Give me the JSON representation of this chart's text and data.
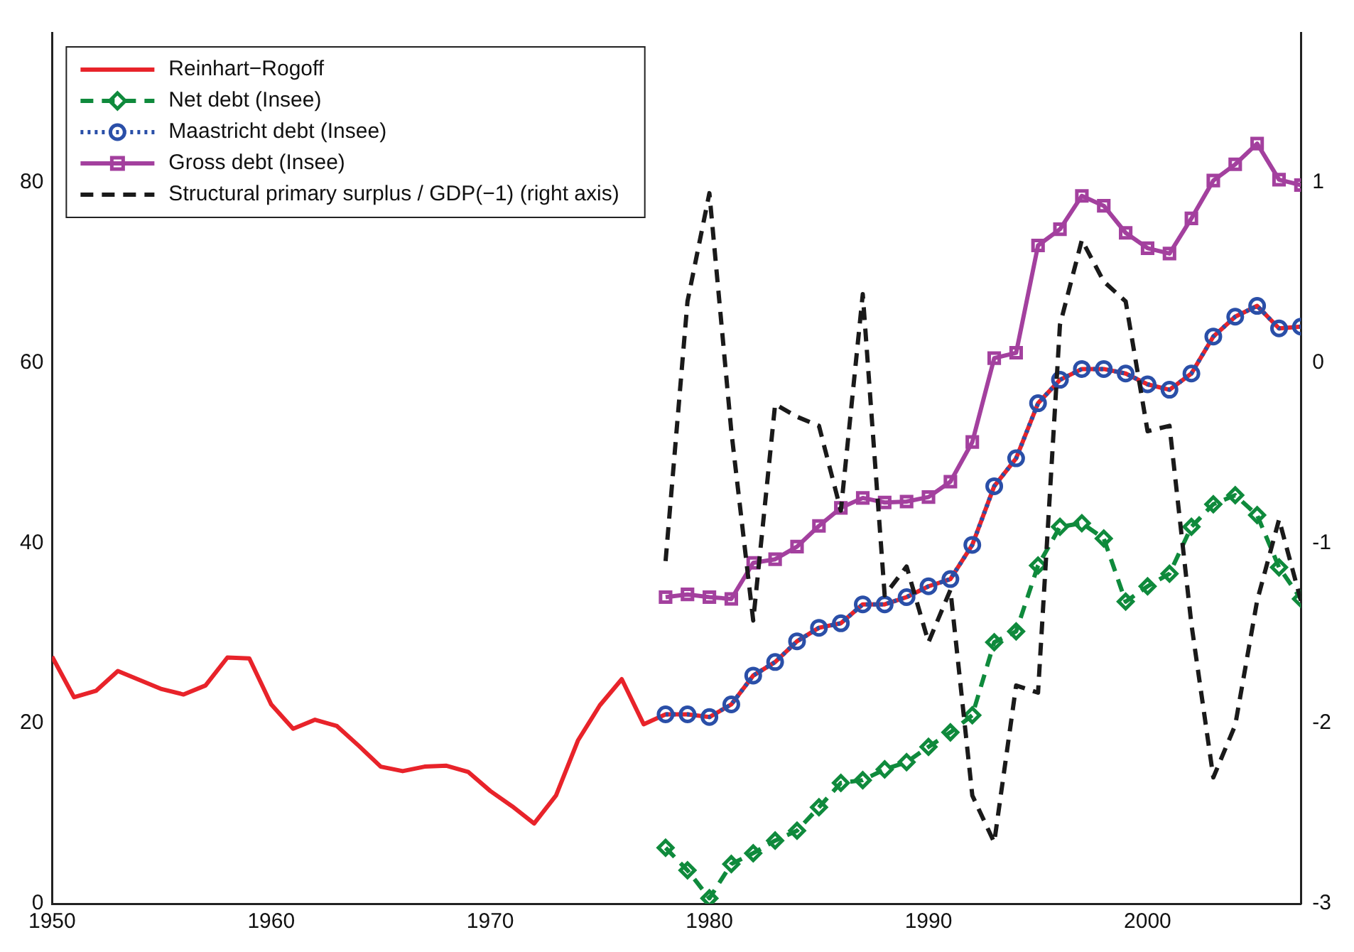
{
  "chart_data": {
    "type": "line",
    "x": [
      1978,
      1979,
      1980,
      1981,
      1982,
      1983,
      1984,
      1985,
      1986,
      1987,
      1988,
      1989,
      1990,
      1991,
      1992,
      1993,
      1994,
      1995,
      1996,
      1997,
      1998,
      1999,
      2000,
      2001,
      2002,
      2003,
      2004,
      2005,
      2006,
      2007
    ],
    "series": [
      {
        "name": "Reinhart−Rogoff",
        "color": "#e8232a",
        "marker": "none",
        "line_style": "solid",
        "x": [
          1950,
          1951,
          1952,
          1953,
          1954,
          1955,
          1956,
          1957,
          1958,
          1959,
          1960,
          1961,
          1962,
          1963,
          1964,
          1965,
          1966,
          1967,
          1968,
          1969,
          1970,
          1971,
          1972,
          1973,
          1974,
          1975,
          1976,
          1977,
          1978,
          1979,
          1980,
          1981,
          1982,
          1983,
          1984,
          1985,
          1986,
          1987,
          1988,
          1989,
          1990,
          1991,
          1992,
          1993,
          1994,
          1995,
          1996,
          1997,
          1998,
          1999,
          2000,
          2001,
          2002,
          2003,
          2004,
          2005,
          2006,
          2007
        ],
        "values": [
          27.4,
          22.9,
          23.6,
          25.8,
          24.8,
          23.8,
          23.2,
          24.2,
          27.3,
          27.2,
          22.1,
          19.4,
          20.4,
          19.7,
          17.5,
          15.2,
          14.7,
          15.2,
          15.3,
          14.6,
          12.5,
          10.8,
          8.9,
          12.0,
          18.1,
          22.0,
          24.9,
          19.9,
          21.0,
          21.0,
          20.7,
          22.1,
          25.3,
          26.8,
          29.1,
          30.6,
          31.1,
          33.2,
          33.2,
          34.0,
          35.2,
          36.0,
          39.8,
          46.3,
          49.4,
          55.5,
          58.1,
          59.3,
          59.3,
          58.8,
          57.6,
          57.0,
          58.8,
          62.9,
          65.1,
          66.3,
          63.8,
          64.0
        ]
      },
      {
        "name": "Net debt (Insee)",
        "color": "#0f8a3c",
        "marker": "diamond",
        "line_style": "dashed",
        "values": [
          6.2,
          3.7,
          0.6,
          4.4,
          5.6,
          7.0,
          8.1,
          10.7,
          13.4,
          13.7,
          14.9,
          15.7,
          17.4,
          19.0,
          20.9,
          29.0,
          30.2,
          37.5,
          41.8,
          42.2,
          40.5,
          33.5,
          35.2,
          36.6,
          41.8,
          44.3,
          45.3,
          43.1,
          37.3,
          33.8
        ]
      },
      {
        "name": "Maastricht debt (Insee)",
        "color": "#2a4fa8",
        "marker": "circle",
        "line_style": "dotted",
        "values": [
          21.0,
          21.0,
          20.7,
          22.1,
          25.3,
          26.8,
          29.1,
          30.6,
          31.1,
          33.2,
          33.2,
          34.0,
          35.2,
          36.0,
          39.8,
          46.3,
          49.4,
          55.5,
          58.1,
          59.3,
          59.3,
          58.8,
          57.6,
          57.0,
          58.8,
          62.9,
          65.1,
          66.3,
          63.8,
          64.0
        ]
      },
      {
        "name": "Gross debt (Insee)",
        "color": "#a3409e",
        "marker": "square",
        "line_style": "solid",
        "values": [
          34.0,
          34.3,
          34.0,
          33.8,
          37.8,
          38.2,
          39.6,
          41.9,
          43.9,
          45.0,
          44.5,
          44.6,
          45.1,
          46.8,
          51.2,
          60.5,
          61.1,
          73.0,
          74.8,
          78.5,
          77.4,
          74.4,
          72.7,
          72.1,
          76.0,
          80.2,
          82.0,
          84.3,
          80.3,
          79.7
        ]
      },
      {
        "name": "Structural primary surplus / GDP(−1) (right axis)",
        "color": "#1a1a1a",
        "marker": "none",
        "line_style": "dashed",
        "axis": "y2",
        "values": [
          -1.1,
          0.34,
          0.94,
          -0.38,
          -1.43,
          -0.23,
          -0.3,
          -0.35,
          -0.82,
          0.38,
          -1.29,
          -1.13,
          -1.55,
          -1.26,
          -2.4,
          -2.66,
          -1.79,
          -1.83,
          0.21,
          0.68,
          0.45,
          0.34,
          -0.38,
          -0.35,
          -1.45,
          -2.3,
          -2.01,
          -1.32,
          -0.87,
          -1.32
        ]
      }
    ],
    "xlim": [
      1950,
      2007
    ],
    "xticks": [
      1950,
      1960,
      1970,
      1980,
      1990,
      2000
    ],
    "ylim": [
      0,
      96.6
    ],
    "yticks": [
      0,
      20,
      40,
      60,
      80
    ],
    "y2lim": [
      -3,
      1.83
    ],
    "y2ticks": [
      -3,
      -2,
      -1,
      0,
      1
    ],
    "grid": false,
    "legend": "top left"
  }
}
